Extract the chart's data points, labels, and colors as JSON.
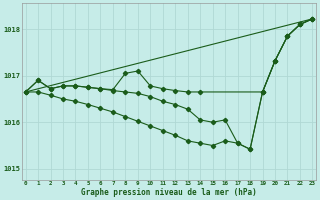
{
  "bg_color": "#c6ece8",
  "grid_color": "#b0d8d4",
  "line_color": "#1a5c1a",
  "ylim": [
    1014.75,
    1018.55
  ],
  "yticks": [
    1015,
    1016,
    1017,
    1018
  ],
  "xlim": [
    -0.3,
    23.3
  ],
  "xticks": [
    0,
    1,
    2,
    3,
    4,
    5,
    6,
    7,
    8,
    9,
    10,
    11,
    12,
    13,
    14,
    15,
    16,
    17,
    18,
    19,
    20,
    21,
    22,
    23
  ],
  "xlabel": "Graphe pression niveau de la mer (hPa)",
  "line1": {
    "x": [
      0,
      23
    ],
    "y": [
      1016.65,
      1018.22
    ]
  },
  "line2": {
    "x": [
      0,
      1,
      2,
      3,
      4,
      5,
      6,
      7,
      8,
      9,
      10,
      11,
      12,
      13,
      14,
      19,
      20,
      21,
      22,
      23
    ],
    "y": [
      1016.65,
      1016.9,
      1016.72,
      1016.78,
      1016.78,
      1016.75,
      1016.72,
      1016.7,
      1017.05,
      1017.1,
      1016.78,
      1016.72,
      1016.68,
      1016.65,
      1016.65,
      1016.65,
      1017.32,
      1017.85,
      1018.1,
      1018.22
    ]
  },
  "line3": {
    "x": [
      0,
      1,
      2,
      3,
      4,
      5,
      6,
      7,
      8,
      9,
      10,
      11,
      12,
      13,
      14,
      15,
      16,
      17,
      18,
      19,
      20,
      21,
      22,
      23
    ],
    "y": [
      1016.65,
      1016.9,
      1016.72,
      1016.78,
      1016.78,
      1016.75,
      1016.72,
      1016.68,
      1016.65,
      1016.62,
      1016.55,
      1016.45,
      1016.38,
      1016.28,
      1016.05,
      1016.0,
      1016.05,
      1015.55,
      1015.42,
      1016.65,
      1017.32,
      1017.85,
      1018.1,
      1018.22
    ]
  },
  "line4": {
    "x": [
      0,
      1,
      2,
      3,
      4,
      5,
      6,
      7,
      8,
      9,
      10,
      11,
      12,
      13,
      14,
      15,
      16,
      17,
      18,
      19,
      20,
      21,
      22,
      23
    ],
    "y": [
      1016.65,
      1016.65,
      1016.58,
      1016.5,
      1016.45,
      1016.38,
      1016.3,
      1016.22,
      1016.12,
      1016.02,
      1015.92,
      1015.82,
      1015.72,
      1015.6,
      1015.55,
      1015.5,
      1015.6,
      1015.55,
      1015.42,
      1016.65,
      1017.32,
      1017.85,
      1018.1,
      1018.22
    ]
  }
}
